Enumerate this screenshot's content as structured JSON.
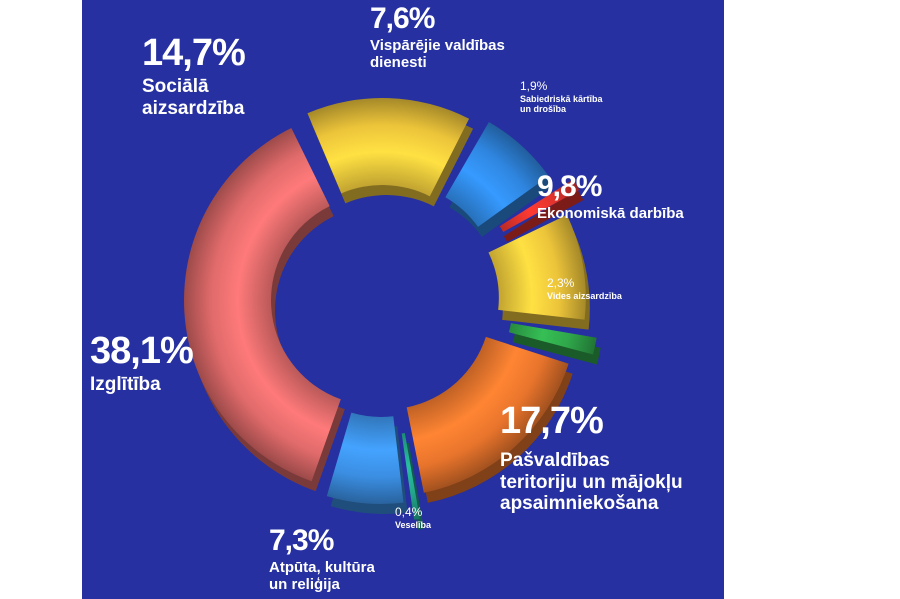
{
  "chart_data": {
    "type": "pie",
    "slices": [
      {
        "label": "Izglītība",
        "value_text": "38,1%",
        "value": 38.1,
        "color": "#e06a6a"
      },
      {
        "label": "Sociālā\naizsardzība",
        "value_text": "14,7%",
        "value": 14.7,
        "color": "#ecc43a"
      },
      {
        "label": "Vispārējie valdības\ndienesti",
        "value_text": "7,6%",
        "value": 7.6,
        "color": "#2f86e0"
      },
      {
        "label": "Sabiedriskā kārtība\nun drošība",
        "value_text": "1,9%",
        "value": 1.9,
        "color": "#e0332c"
      },
      {
        "label": "Ekonomiskā darbība",
        "value_text": "9,8%",
        "value": 9.8,
        "color": "#ecc43a"
      },
      {
        "label": "Vides aizsardzība",
        "value_text": "2,3%",
        "value": 2.3,
        "color": "#2fa64a"
      },
      {
        "label": "Pašvaldības\nteritoriju un mājokļu\napsaimniekošana",
        "value_text": "17,7%",
        "value": 17.7,
        "color": "#e8742c"
      },
      {
        "label": "Veselība",
        "value_text": "0,4%",
        "value": 0.4,
        "color": "#23a68c"
      },
      {
        "label": "Atpūta, kultūra\nun reliģija",
        "value_text": "7,3%",
        "value": 7.3,
        "color": "#3b8ee2"
      }
    ]
  }
}
